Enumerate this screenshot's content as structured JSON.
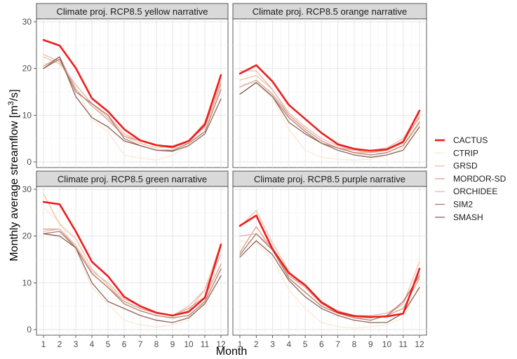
{
  "chart_data": {
    "type": "line",
    "ylabel_prefix": "Monthly average streamflow [m",
    "ylabel_sup": "3",
    "ylabel_suffix": "/s]",
    "xlabel": "Month",
    "xlim": [
      1,
      12
    ],
    "ylim": [
      0,
      30
    ],
    "x_ticks": [
      1,
      2,
      3,
      4,
      5,
      6,
      7,
      8,
      9,
      10,
      11,
      12
    ],
    "y_ticks": [
      0,
      10,
      20,
      30
    ],
    "grid": true,
    "legend_position": "right",
    "series_styles": [
      {
        "name": "CACTUS",
        "color": "#ee1c1c",
        "width": 2.6
      },
      {
        "name": "CTRIP",
        "color": "#fde7d2",
        "width": 1.3
      },
      {
        "name": "GRSD",
        "color": "#f0c2a4",
        "width": 1.3
      },
      {
        "name": "MORDOR-SD",
        "color": "#d9a08e",
        "width": 1.3
      },
      {
        "name": "ORCHIDEE",
        "color": "#e8b8b2",
        "width": 1.3
      },
      {
        "name": "SIM2",
        "color": "#b07b6c",
        "width": 1.3
      },
      {
        "name": "SMASH",
        "color": "#8a6356",
        "width": 1.3
      }
    ],
    "panels": [
      {
        "title": "Climate proj. RCP8.5 yellow narrative",
        "series": [
          {
            "name": "CACTUS",
            "values": [
              26.1,
              24.9,
              20.1,
              13.6,
              10.8,
              7.0,
              4.6,
              3.6,
              3.2,
              4.5,
              8.0,
              18.6
            ]
          },
          {
            "name": "CTRIP",
            "values": [
              21.0,
              21.5,
              16.0,
              9.0,
              6.5,
              1.5,
              0.8,
              0.4,
              1.5,
              3.5,
              6.0,
              17.0
            ]
          },
          {
            "name": "GRSD",
            "values": [
              22.5,
              21.0,
              16.5,
              12.5,
              9.5,
              5.5,
              4.0,
              3.0,
              3.5,
              4.0,
              8.0,
              17.5
            ]
          },
          {
            "name": "MORDOR-SD",
            "values": [
              20.5,
              22.5,
              15.5,
              12.0,
              9.0,
              5.5,
              4.5,
              3.5,
              3.0,
              4.5,
              7.5,
              16.5
            ]
          },
          {
            "name": "ORCHIDEE",
            "values": [
              23.0,
              21.5,
              16.5,
              12.5,
              10.0,
              6.0,
              4.5,
              3.5,
              3.5,
              4.5,
              8.5,
              17.0
            ]
          },
          {
            "name": "SIM2",
            "values": [
              20.0,
              22.0,
              15.0,
              12.5,
              10.0,
              5.0,
              3.5,
              2.5,
              2.5,
              4.0,
              6.5,
              15.5
            ]
          },
          {
            "name": "SMASH",
            "values": [
              20.0,
              22.5,
              14.0,
              9.5,
              7.5,
              4.5,
              3.5,
              2.5,
              2.3,
              3.5,
              6.0,
              13.5
            ]
          }
        ]
      },
      {
        "title": "Climate proj. RCP8.5 orange narrative",
        "series": [
          {
            "name": "CACTUS",
            "values": [
              18.9,
              20.7,
              17.2,
              12.2,
              9.2,
              6.2,
              3.8,
              2.8,
              2.4,
              2.7,
              4.3,
              11.0
            ]
          },
          {
            "name": "CTRIP",
            "values": [
              16.5,
              17.0,
              13.5,
              7.0,
              2.5,
              1.0,
              0.6,
              0.4,
              0.6,
              1.5,
              3.0,
              8.0
            ]
          },
          {
            "name": "GRSD",
            "values": [
              17.5,
              18.5,
              15.5,
              10.0,
              7.0,
              4.5,
              3.0,
              2.0,
              2.0,
              2.5,
              4.0,
              10.0
            ]
          },
          {
            "name": "MORDOR-SD",
            "values": [
              16.0,
              17.5,
              14.5,
              10.0,
              7.0,
              4.5,
              3.0,
              2.5,
              2.0,
              2.5,
              4.5,
              9.5
            ]
          },
          {
            "name": "ORCHIDEE",
            "values": [
              19.5,
              19.5,
              15.5,
              10.5,
              7.5,
              5.0,
              3.5,
              2.5,
              2.5,
              3.0,
              5.0,
              10.5
            ]
          },
          {
            "name": "SIM2",
            "values": [
              14.5,
              17.0,
              14.0,
              9.5,
              6.5,
              4.0,
              3.0,
              2.0,
              1.5,
              2.0,
              3.5,
              8.5
            ]
          },
          {
            "name": "SMASH",
            "values": [
              14.5,
              17.0,
              14.0,
              8.5,
              6.0,
              4.0,
              2.5,
              1.5,
              1.0,
              1.5,
              2.5,
              7.5
            ]
          }
        ]
      },
      {
        "title": "Climate proj. RCP8.5 green narrative",
        "series": [
          {
            "name": "CACTUS",
            "values": [
              27.3,
              26.8,
              21.0,
              14.5,
              11.4,
              7.0,
              5.0,
              3.6,
              3.0,
              3.8,
              6.8,
              18.2
            ]
          },
          {
            "name": "CTRIP",
            "values": [
              26.0,
              23.0,
              17.0,
              9.0,
              5.5,
              2.0,
              1.0,
              0.5,
              1.0,
              2.0,
              6.0,
              17.5
            ]
          },
          {
            "name": "GRSD",
            "values": [
              29.0,
              22.5,
              19.5,
              13.0,
              9.5,
              6.0,
              4.5,
              3.5,
              3.0,
              4.0,
              8.5,
              18.5
            ]
          },
          {
            "name": "MORDOR-SD",
            "values": [
              21.5,
              21.5,
              17.5,
              12.0,
              9.0,
              6.0,
              4.5,
              3.5,
              3.0,
              4.5,
              7.0,
              14.0
            ]
          },
          {
            "name": "ORCHIDEE",
            "values": [
              21.0,
              21.5,
              18.0,
              12.5,
              10.0,
              6.5,
              5.0,
              3.5,
              3.0,
              5.0,
              8.5,
              16.0
            ]
          },
          {
            "name": "SIM2",
            "values": [
              20.5,
              21.0,
              17.5,
              12.0,
              9.0,
              5.5,
              4.0,
              3.0,
              2.5,
              3.0,
              6.0,
              13.0
            ]
          },
          {
            "name": "SMASH",
            "values": [
              20.5,
              20.0,
              17.5,
              10.0,
              6.0,
              4.5,
              3.0,
              2.0,
              1.5,
              2.5,
              5.5,
              11.5
            ]
          }
        ]
      },
      {
        "title": "Climate proj. RCP8.5 purple narrative",
        "series": [
          {
            "name": "CACTUS",
            "values": [
              22.2,
              24.4,
              17.2,
              12.1,
              9.5,
              5.8,
              3.7,
              2.9,
              2.7,
              2.8,
              3.4,
              13.0
            ]
          },
          {
            "name": "CTRIP",
            "values": [
              19.0,
              18.5,
              15.0,
              8.5,
              4.5,
              1.5,
              0.6,
              0.3,
              0.6,
              1.0,
              2.5,
              9.5
            ]
          },
          {
            "name": "GRSD",
            "values": [
              22.0,
              25.5,
              18.5,
              12.5,
              9.0,
              5.5,
              3.5,
              2.5,
              2.5,
              3.0,
              5.5,
              14.5
            ]
          },
          {
            "name": "MORDOR-SD",
            "values": [
              16.5,
              22.0,
              17.0,
              11.5,
              9.0,
              5.5,
              4.0,
              3.0,
              2.5,
              3.0,
              4.5,
              11.0
            ]
          },
          {
            "name": "ORCHIDEE",
            "values": [
              20.0,
              20.5,
              17.5,
              12.0,
              9.0,
              6.0,
              4.0,
              3.0,
              3.0,
              3.5,
              5.5,
              12.0
            ]
          },
          {
            "name": "SIM2",
            "values": [
              16.0,
              20.5,
              17.0,
              11.0,
              8.0,
              5.0,
              3.5,
              2.5,
              2.0,
              3.0,
              6.0,
              11.5
            ]
          },
          {
            "name": "SMASH",
            "values": [
              15.5,
              19.0,
              16.0,
              10.5,
              7.0,
              4.5,
              3.0,
              2.0,
              1.5,
              1.5,
              3.5,
              9.0
            ]
          }
        ]
      }
    ]
  }
}
